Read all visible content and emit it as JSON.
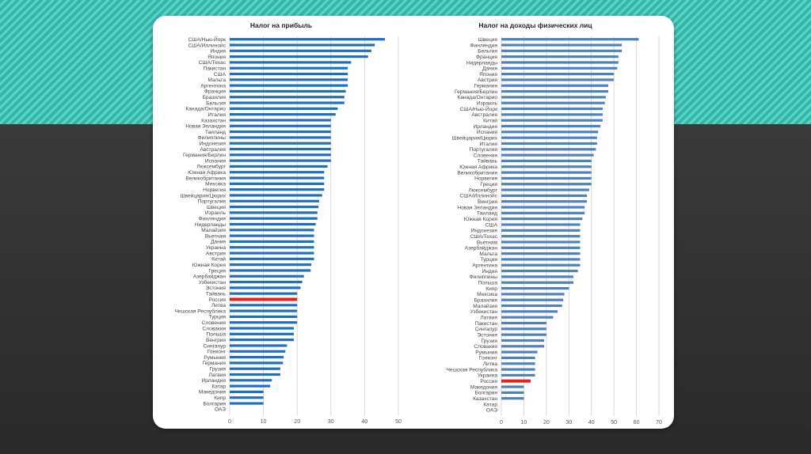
{
  "colors": {
    "left_bar": "#1f6fbf",
    "right_bar": "#4f81bd",
    "highlight": "#e3211b"
  },
  "chart_data": [
    {
      "type": "bar",
      "orientation": "horizontal",
      "title": "Налог на прибыль",
      "xlim": [
        0,
        50
      ],
      "xticks": [
        0,
        10,
        20,
        30,
        40,
        50
      ],
      "grid": true,
      "highlight": "Россия",
      "categories": [
        "США/Нью-Йорк",
        "США/Иллинойс",
        "Индия",
        "Япония",
        "США/Техас",
        "Пакистан",
        "США",
        "Мальта",
        "Аргентина",
        "Франция",
        "Бразилия",
        "Бельгия",
        "Канада/Онтарио",
        "Италия",
        "Казахстан",
        "Новая Зеландия",
        "Таиланд",
        "Филиппины",
        "Индонезия",
        "Австралия",
        "Германия/Берлин",
        "Испания",
        "Люксембург",
        "Южная Африка",
        "Великобритания",
        "Мексика",
        "Норвегия",
        "Швейцария/Цюрих",
        "Португалия",
        "Швеция",
        "Израиль",
        "Финляндия",
        "Нидерланды",
        "Малайзия",
        "Вьетнам",
        "Дания",
        "Украина",
        "Австрия",
        "Китай",
        "Южная Корея",
        "Греция",
        "Азербайджан",
        "Узбекистан",
        "Эстония",
        "Тайвань",
        "Россия",
        "Литва",
        "Чешская Республика",
        "Турция",
        "Словения",
        "Словакия",
        "Польша",
        "Венгрия",
        "Сингапур",
        "Гонконг",
        "Румыния",
        "Германия",
        "Грузия",
        "Латвия",
        "Ирландия",
        "Катар",
        "Македония",
        "Кипр",
        "Болгария",
        "ОАЭ"
      ],
      "values": [
        46,
        43,
        42,
        41,
        36,
        35,
        35,
        35,
        35,
        34.4,
        34,
        34,
        32,
        31.4,
        30,
        30,
        30,
        30,
        30,
        30,
        30,
        30,
        29,
        28,
        28,
        28,
        28,
        27.4,
        26.5,
        26.3,
        26,
        26,
        25.5,
        25,
        25,
        25,
        25,
        25,
        25,
        24.2,
        24,
        22,
        21.5,
        21,
        20,
        20,
        20,
        20,
        20,
        20,
        19,
        19,
        19,
        17,
        16.5,
        16,
        15.8,
        15,
        15,
        12.5,
        12,
        10,
        10,
        10,
        0
      ]
    },
    {
      "type": "bar",
      "orientation": "horizontal",
      "title": "Налог на доходы физических лиц",
      "xlim": [
        0,
        70
      ],
      "xticks": [
        0,
        10,
        20,
        30,
        40,
        50,
        60,
        70
      ],
      "grid": true,
      "highlight": "Россия",
      "categories": [
        "Швеция",
        "Финляндия",
        "Бельгия",
        "Франция",
        "Нидерланды",
        "Дания",
        "Япония",
        "Австрия",
        "Германия",
        "Германия/Берлин",
        "Канада/Онтарио",
        "Израиль",
        "США/Нью-Йорк",
        "Австралия",
        "Китай",
        "Ирландия",
        "Испания",
        "Швейцария/Цюрих",
        "Италия",
        "Португалия",
        "Словения",
        "Тайвань",
        "Южная Африка",
        "Великобритания",
        "Норвегия",
        "Греция",
        "Люксембург",
        "США/Иллинойс",
        "Венгрия",
        "Новая Зеландия",
        "Таиланд",
        "Южная Корея",
        "США",
        "Индонезия",
        "США/Техас",
        "Вьетнам",
        "Азербайджан",
        "Мальта",
        "Турция",
        "Аргентина",
        "Индия",
        "Филиппины",
        "Польша",
        "Кипр",
        "Мексика",
        "Бразилия",
        "Малайзия",
        "Узбекистан",
        "Латвия",
        "Пакистан",
        "Сингапур",
        "Эстония",
        "Грузия",
        "Словакия",
        "Румыния",
        "Гонконг",
        "Литва",
        "Чешская Республика",
        "Украина",
        "Россия",
        "Македония",
        "Болгария",
        "Казахстан",
        "Катар",
        "ОАЭ"
      ],
      "values": [
        61,
        53.5,
        53.5,
        52,
        52,
        51.5,
        50,
        50,
        47.5,
        47.5,
        46.4,
        46,
        45,
        45,
        45,
        44,
        43,
        42.5,
        42.5,
        42,
        41,
        40,
        40,
        40,
        40,
        40,
        39,
        38,
        38,
        37,
        37,
        36,
        35,
        35,
        35,
        35,
        35,
        35,
        35,
        35,
        34,
        32,
        32,
        30,
        28,
        27.5,
        27,
        25,
        23,
        20,
        20,
        20,
        19,
        19,
        16,
        15,
        15,
        15,
        15,
        13,
        10,
        10,
        10,
        0,
        0
      ]
    }
  ]
}
